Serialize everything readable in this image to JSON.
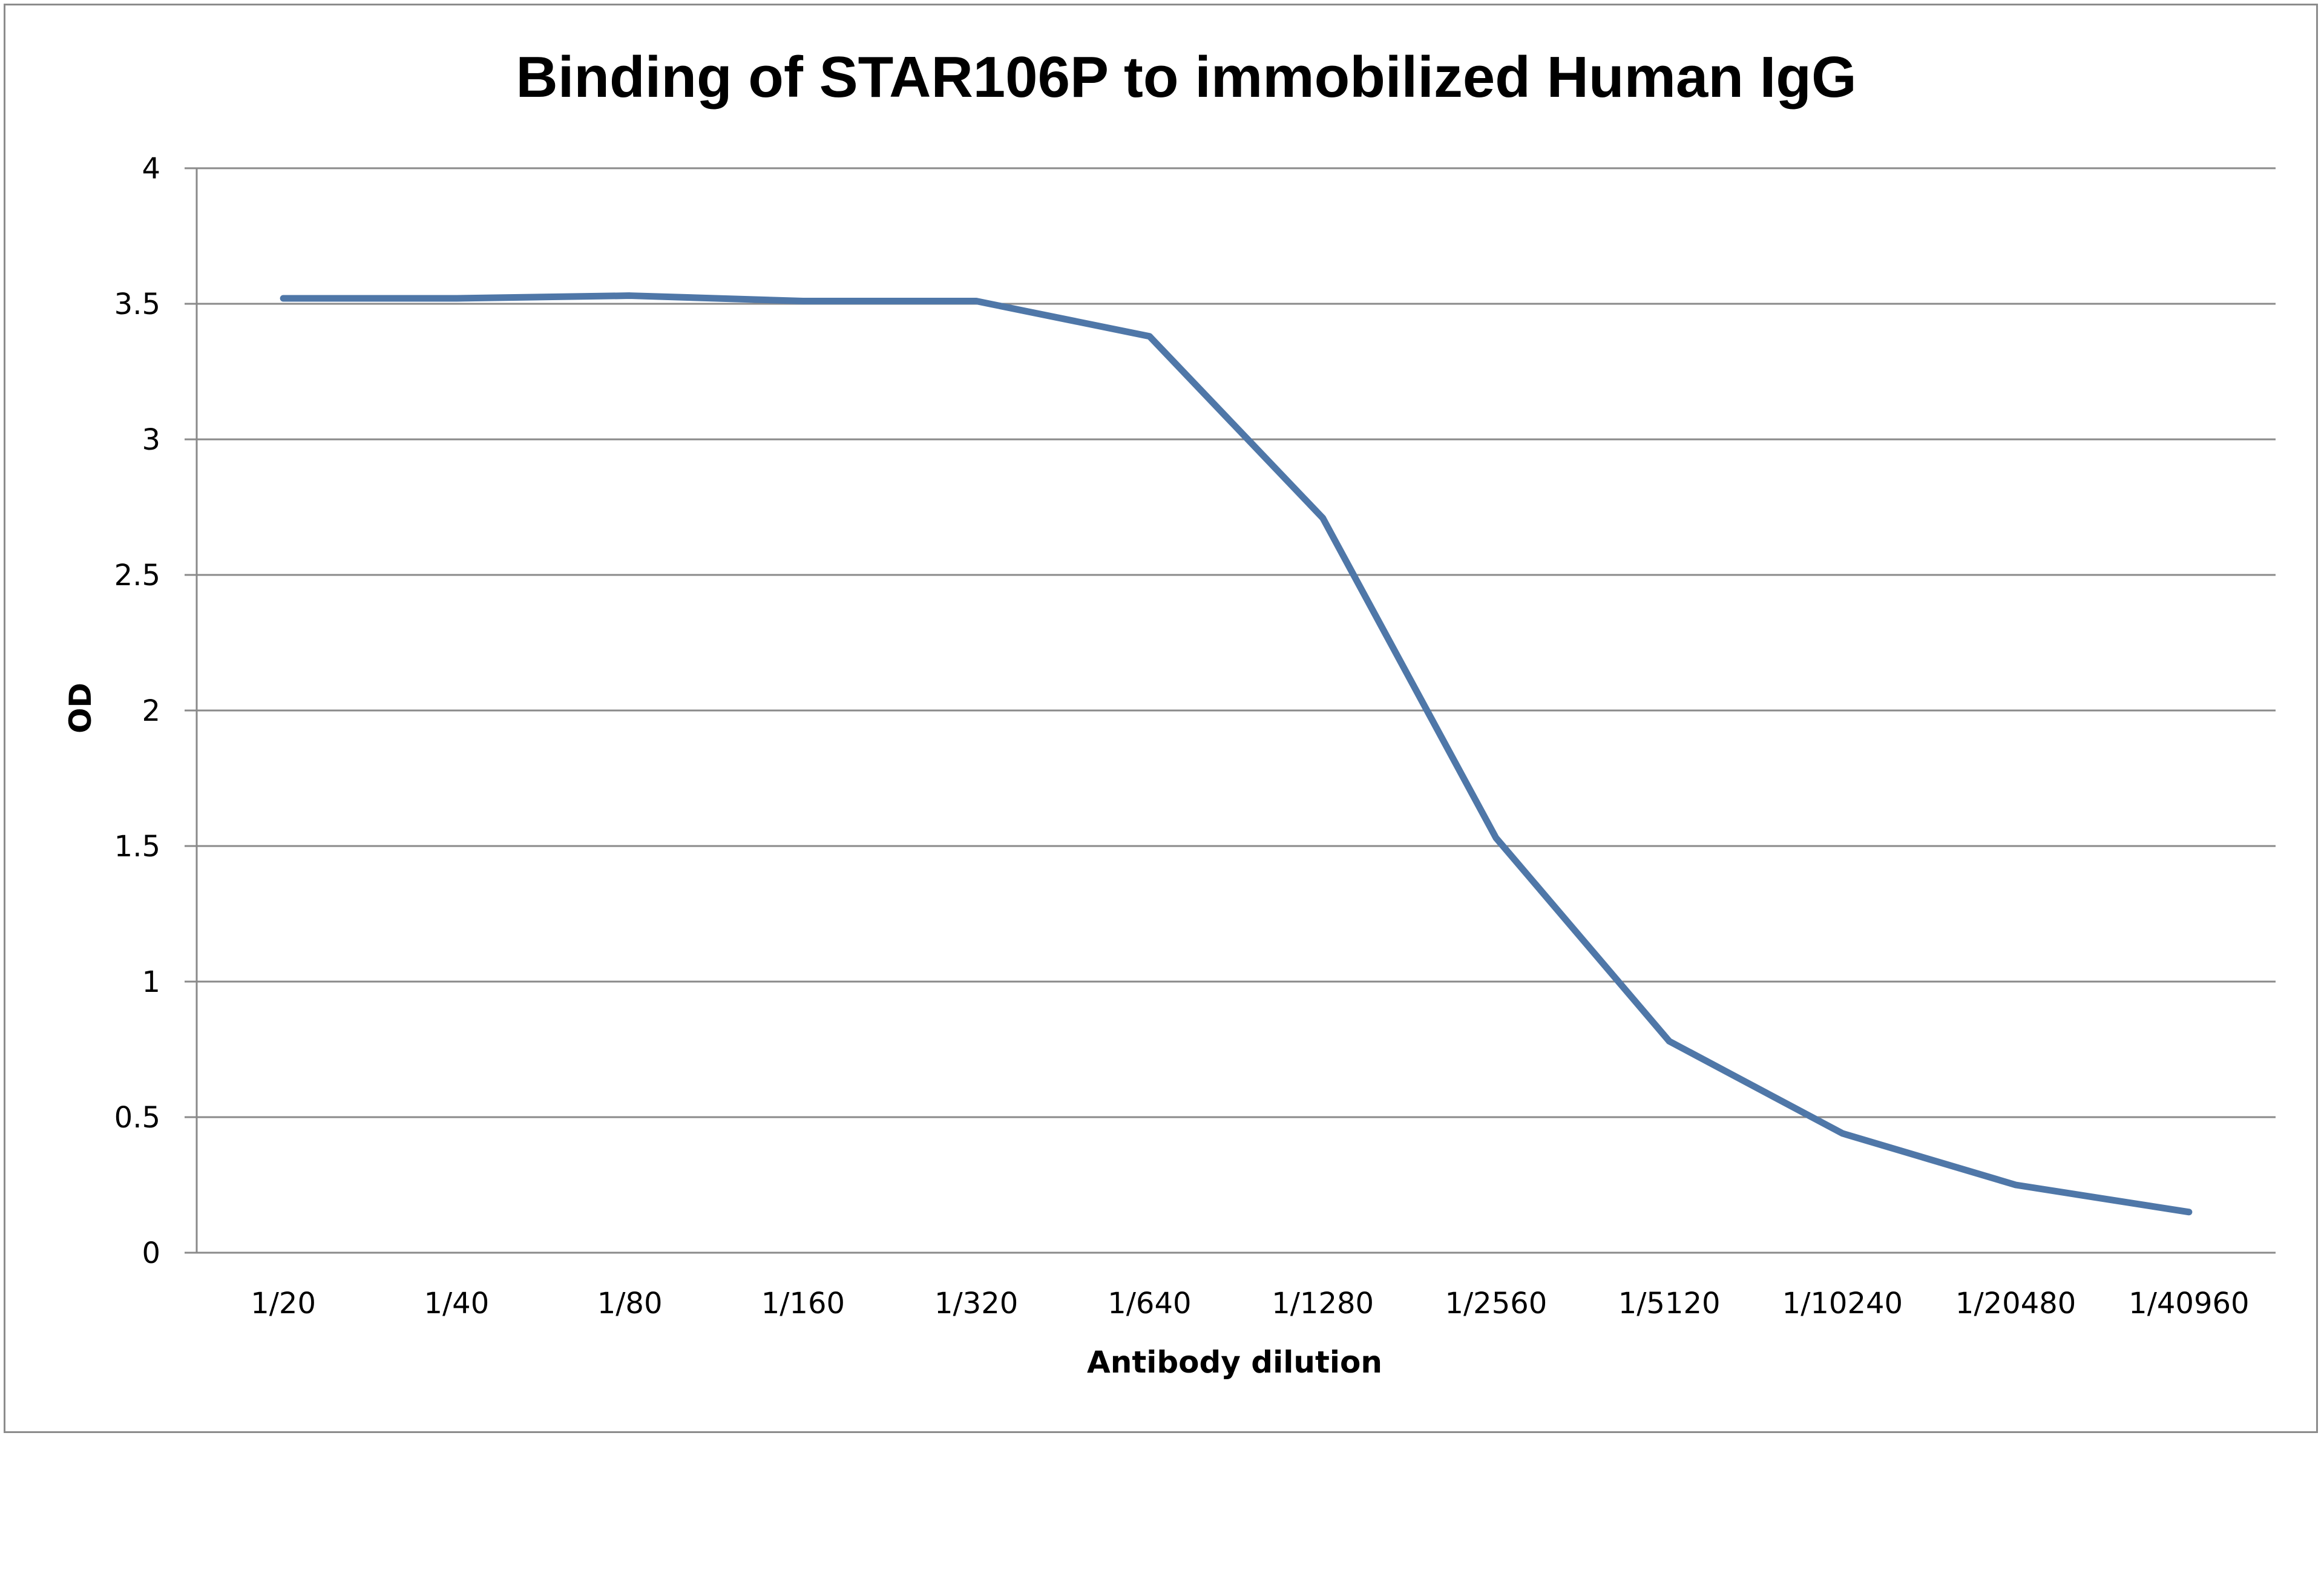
{
  "chart_data": {
    "type": "line",
    "title": "Binding of STAR106P to immobilized Human IgG",
    "xlabel": "Antibody dilution",
    "ylabel": "OD",
    "categories": [
      "1/20",
      "1/40",
      "1/80",
      "1/160",
      "1/320",
      "1/640",
      "1/1280",
      "1/2560",
      "1/5120",
      "1/10240",
      "1/20480",
      "1/40960"
    ],
    "series": [
      {
        "values": [
          3.52,
          3.52,
          3.53,
          3.51,
          3.51,
          3.38,
          2.71,
          1.53,
          0.78,
          0.44,
          0.25,
          0.15
        ],
        "color": "#4f77a8"
      }
    ],
    "ylim": [
      0,
      4
    ],
    "yticks": [
      "0",
      "0.5",
      "1",
      "1.5",
      "2",
      "2.5",
      "3",
      "3.5",
      "4"
    ],
    "grid": true,
    "legend": "none"
  }
}
